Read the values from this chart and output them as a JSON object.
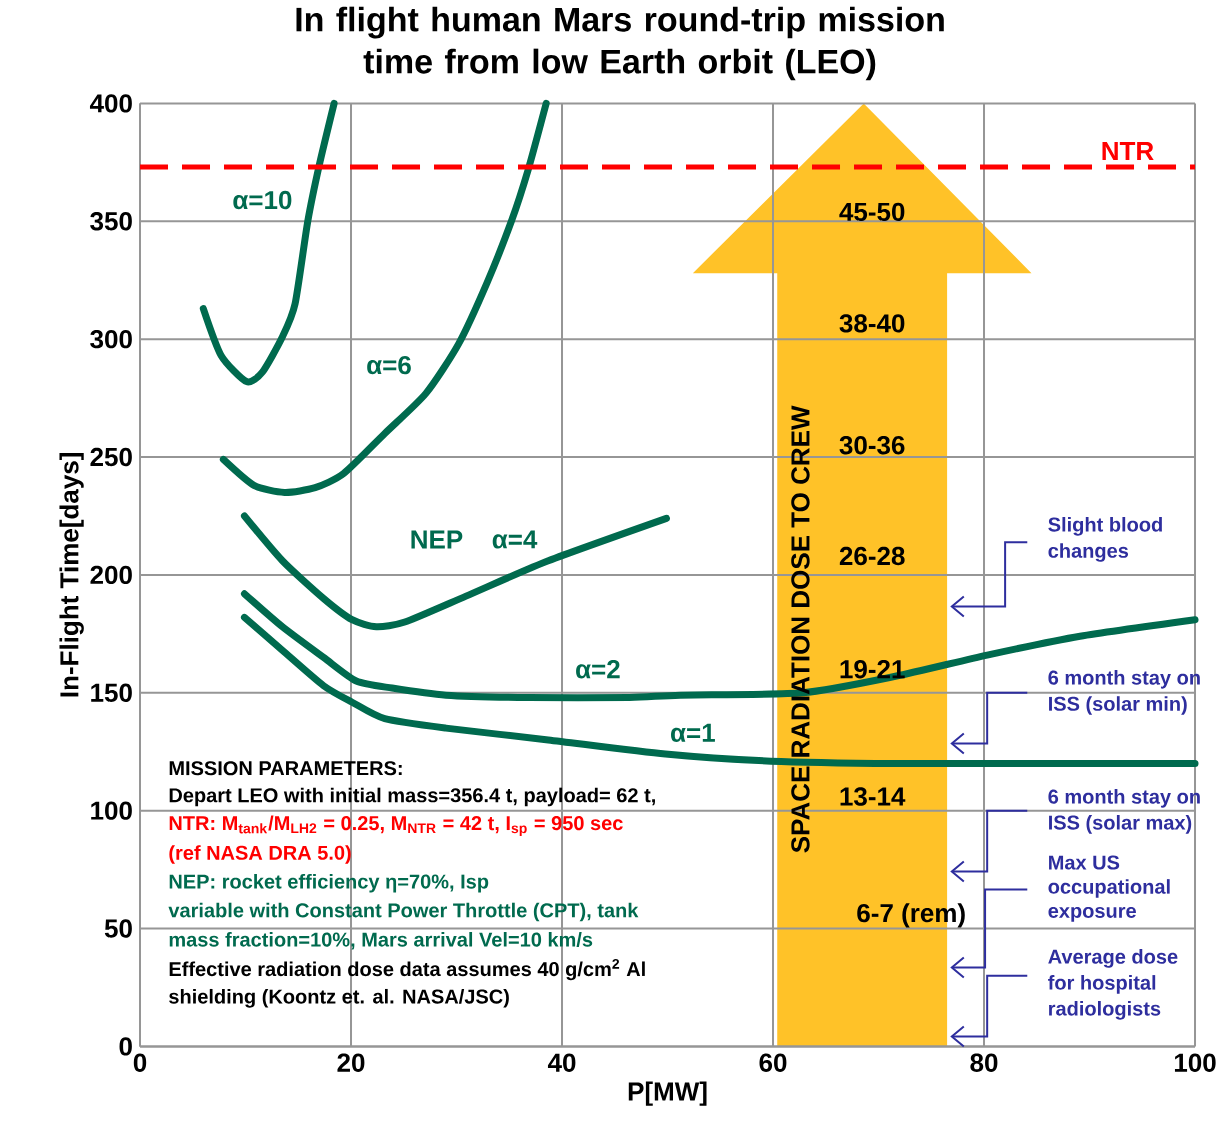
{
  "chart_data": {
    "type": "line",
    "title": "In flight human Mars round-trip mission time from low Earth orbit (LEO)",
    "xlabel": "P[MW]",
    "ylabel": "In-Flight Time[days]",
    "xlim": [
      0,
      100
    ],
    "ylim": [
      0,
      400
    ],
    "xticks": [
      0,
      20,
      40,
      60,
      80,
      100
    ],
    "yticks": [
      0,
      50,
      100,
      150,
      200,
      250,
      300,
      350,
      400
    ],
    "grid": true,
    "series": [
      {
        "name": "α=10",
        "color": "#006a4e",
        "x": [
          6.0,
          7.7,
          10.1,
          11.6,
          13.5,
          14.7,
          15.9,
          17.0,
          18.4
        ],
        "values": [
          313,
          293,
          282,
          286,
          301,
          315,
          350,
          374,
          400
        ]
      },
      {
        "name": "α=6",
        "color": "#006a4e",
        "x": [
          7.9,
          10.8,
          13.7,
          16.6,
          19.3,
          23.2,
          27.1,
          30.2,
          32.9,
          35.2,
          36.8,
          38.5
        ],
        "values": [
          249,
          238,
          235,
          237,
          243,
          260,
          277,
          298,
          324,
          350,
          372,
          400
        ]
      },
      {
        "name": "α=4",
        "color": "#006a4e",
        "x": [
          9.9,
          13.5,
          17.4,
          20.1,
          22.4,
          25.1,
          30.9,
          38.7,
          49.9
        ],
        "values": [
          225,
          206,
          190,
          181,
          178,
          180,
          191,
          206,
          224
        ]
      },
      {
        "name": "α=2",
        "color": "#006a4e",
        "x": [
          9.9,
          13.5,
          17.4,
          20.5,
          23.9,
          29,
          36.8,
          46.4,
          51.2,
          62.8,
          71.6,
          80.3,
          89.1,
          100
        ],
        "values": [
          192,
          178,
          165,
          155,
          152,
          149,
          148,
          148,
          149,
          150,
          157,
          166,
          174,
          181
        ]
      },
      {
        "name": "α=1",
        "color": "#006a4e",
        "x": [
          9.9,
          13.5,
          17.4,
          20.1,
          23.2,
          29,
          38.7,
          49.8,
          59.8,
          71.7,
          83.7,
          100
        ],
        "values": [
          182,
          168,
          153,
          146,
          139,
          135,
          130,
          124,
          121,
          120,
          120,
          120
        ]
      }
    ],
    "ref_lines": [
      {
        "axis": "y",
        "value": 373,
        "label": "NTR",
        "color": "#ff0000",
        "line_style": "dashed"
      }
    ],
    "annotations": [
      "NEP",
      "45-50",
      "38-40",
      "30-36",
      "26-28",
      "19-21",
      "13-14",
      "6-7 (rem)",
      "SPACE RADIATION DOSE TO CREW",
      "MISSION PARAMETERS:",
      "Depart LEO with initial mass=356.4 t, payload= 62 t,",
      "NTR: M$_{tank}$/M$_{LH2}$ = 0.25, M$_{NTR}$ = 42 t, I$_{sp}$ = 950 sec",
      "(ref NASA DRA 5.0)",
      "NEP: rocket efficiency η=70%, Isp",
      "variable with Constant Power Throttle (CPT), tank",
      "mass fraction=10%, Mars arrival Vel=10 km/s",
      "Effective radiation dose data assumes 40 g/cm$^{2}$ Al",
      "shielding (Koontz et. al. NASA/JSC)",
      "Slight blood",
      "changes",
      "6 month stay on",
      "ISS (solar min)",
      "6 month stay on",
      "ISS (solar max)",
      "Max US",
      "occupational",
      "exposure",
      "Average dose",
      "for hospital",
      "radiologists"
    ]
  }
}
